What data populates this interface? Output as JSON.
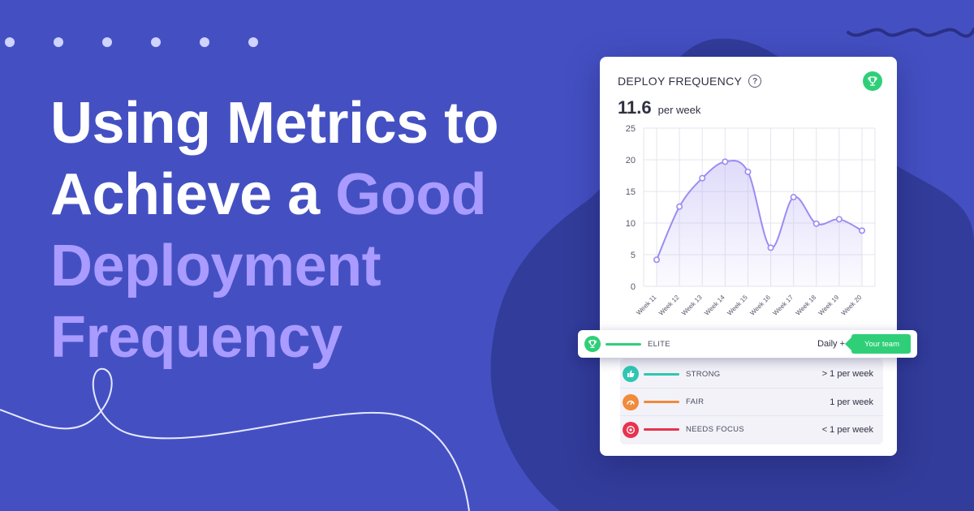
{
  "headline": {
    "line1": "Using Metrics to",
    "line2_plain": "Achieve a ",
    "line2_accent": "Good",
    "line3": "Deployment",
    "line4": "Frequency"
  },
  "colors": {
    "background": "#4450c2",
    "accent": "#a99bff",
    "elite": "#2fcf78",
    "strong": "#2fc7b3",
    "fair": "#f08a3c",
    "needs_focus": "#e8334f",
    "line": "#9b8cf2"
  },
  "card": {
    "title": "DEPLOY FREQUENCY",
    "help_icon": "question-circle-icon",
    "badge_icon": "trophy-icon",
    "metric_value": "11.6",
    "metric_unit": "per week"
  },
  "chart_data": {
    "type": "line",
    "title": "",
    "xlabel": "",
    "ylabel": "",
    "categories": [
      "Week 11",
      "Week 12",
      "Week 13",
      "Week 14",
      "Week 15",
      "Week 16",
      "Week 17",
      "Week 18",
      "Week 19",
      "Week 20"
    ],
    "series": [
      {
        "values": [
          4.2,
          12.6,
          17.1,
          19.7,
          18.1,
          6.1,
          14.1,
          9.9,
          10.6,
          8.8
        ]
      }
    ],
    "ylim": [
      0,
      25
    ],
    "yticks": [
      0,
      5,
      10,
      15,
      20,
      25
    ],
    "grid": true,
    "area_fill": true
  },
  "benchmarks": {
    "elite": {
      "label": "ELITE",
      "value": "Daily +",
      "icon": "trophy-icon",
      "tag": "Your team"
    },
    "rows": [
      {
        "label": "STRONG",
        "value": "> 1 per week",
        "icon": "thumbs-up-icon"
      },
      {
        "label": "FAIR",
        "value": "1 per week",
        "icon": "gauge-icon"
      },
      {
        "label": "NEEDS FOCUS",
        "value": "< 1 per week",
        "icon": "target-icon"
      }
    ]
  }
}
